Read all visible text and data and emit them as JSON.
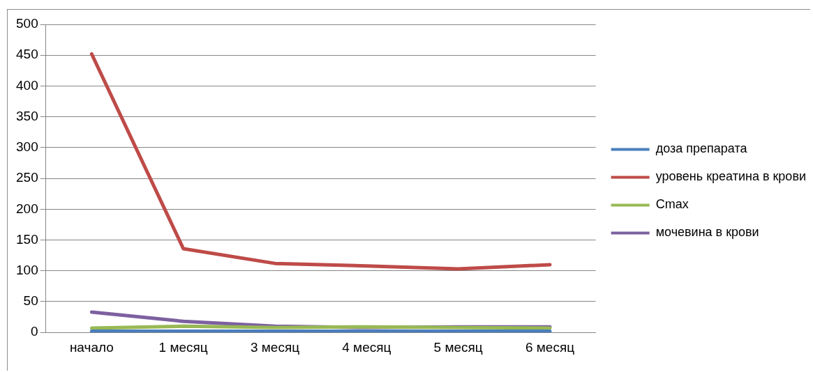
{
  "chart_data": {
    "type": "line",
    "categories": [
      "начало",
      "1 месяц",
      "3 месяц",
      "4 месяц",
      "5 месяц",
      "6 месяц"
    ],
    "series": [
      {
        "name": "доза препарата",
        "color": "#4a7ebb",
        "values": [
          2,
          2,
          2,
          2,
          2,
          2
        ]
      },
      {
        "name": "уровень креатина в крови",
        "color": "#be4b48",
        "values": [
          452,
          136,
          112,
          108,
          103,
          110
        ]
      },
      {
        "name": "Cmax",
        "color": "#98b954",
        "values": [
          7,
          10,
          8,
          9,
          8,
          7
        ]
      },
      {
        "name": "мочевина в крови",
        "color": "#7d60a0",
        "values": [
          33,
          18,
          10,
          8,
          9,
          9
        ]
      }
    ],
    "ylim": [
      0,
      500
    ],
    "yticks": [
      0,
      50,
      100,
      150,
      200,
      250,
      300,
      350,
      400,
      450,
      500
    ],
    "grid": "y",
    "legend": "right",
    "marker": "none"
  }
}
